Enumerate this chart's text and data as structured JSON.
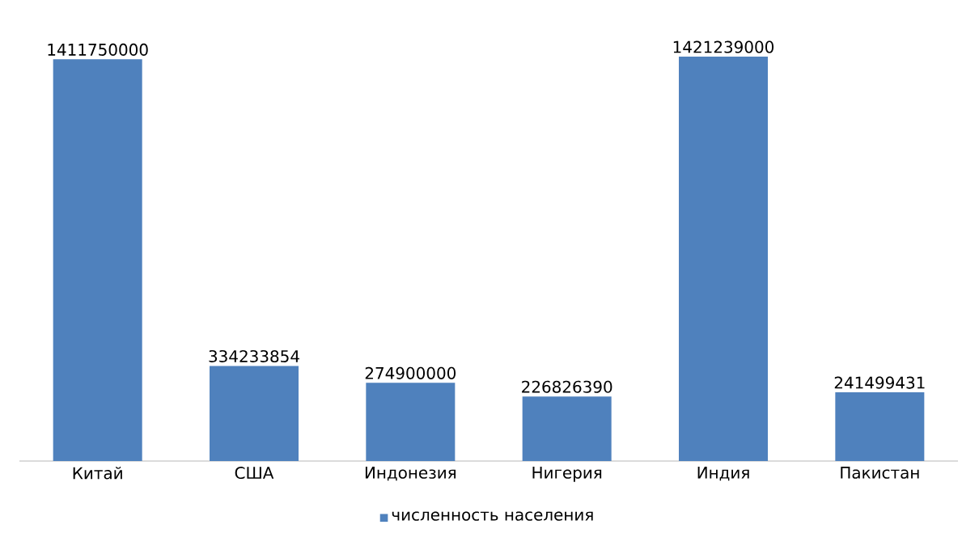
{
  "chart_data": {
    "type": "bar",
    "categories": [
      "Китай",
      "США",
      "Индонезия",
      "Нигерия",
      "Индия",
      "Пакистан"
    ],
    "series": [
      {
        "name": "численность населения",
        "color": "#4f81bd",
        "values": [
          1411750000,
          334233854,
          274900000,
          226826390,
          1421239000,
          241499431
        ]
      }
    ],
    "data_labels": true,
    "legend": "bottom",
    "tick_labels": "x"
  }
}
